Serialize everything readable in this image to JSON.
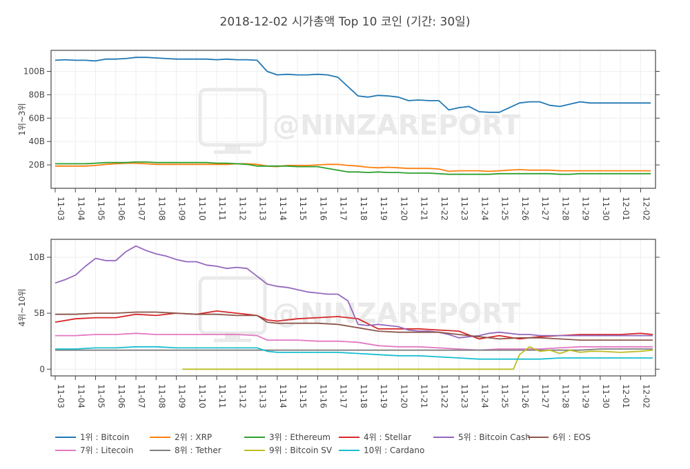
{
  "title": "2018-12-02 시가총액 Top 10 코인 (기간: 30일)",
  "watermark": "@NINZAREPORT",
  "chart_data": [
    {
      "type": "line",
      "panel": "top",
      "ylabel": "1위~3위",
      "ylim": [
        0,
        118
      ],
      "yticks": [
        20,
        40,
        60,
        80,
        100
      ],
      "ytick_labels": [
        "20B",
        "40B",
        "60B",
        "80B",
        "100B"
      ],
      "x_range": [
        0,
        29.6
      ],
      "series": [
        {
          "name": "1위 : Bitcoin",
          "color": "#1f77b4",
          "x": [
            0,
            0.5,
            1,
            1.5,
            2,
            2.5,
            3,
            3.5,
            4,
            4.5,
            5,
            5.5,
            6,
            6.5,
            7,
            7.5,
            8,
            8.5,
            9,
            9.5,
            10,
            10.5,
            11,
            11.5,
            12,
            12.5,
            13,
            13.5,
            14,
            14.5,
            15,
            15.5,
            16,
            16.5,
            17,
            17.5,
            18,
            18.5,
            19,
            19.5,
            20,
            20.5,
            21,
            21.5,
            22,
            22.5,
            23,
            23.5,
            24,
            24.5,
            25,
            25.5,
            26,
            26.5,
            27,
            27.5,
            28,
            28.5,
            29,
            29.5
          ],
          "y": [
            109.5,
            110,
            109.5,
            109.5,
            109,
            110.5,
            110.5,
            111,
            112,
            112,
            111.5,
            111,
            110.5,
            110.5,
            110.5,
            110.5,
            110,
            110.5,
            110,
            110,
            109.5,
            100,
            97,
            97.5,
            97,
            97,
            97.5,
            97,
            95,
            87,
            79,
            78,
            79.5,
            79,
            78,
            75,
            75.5,
            75,
            75,
            67,
            69,
            70,
            65.5,
            65,
            65,
            69,
            73,
            74,
            74,
            71,
            70,
            72,
            74,
            73,
            73,
            73,
            73,
            73,
            73,
            73
          ]
        },
        {
          "name": "2위 : XRP",
          "color": "#ff7f0e",
          "x": [
            0,
            0.5,
            1,
            1.5,
            2,
            2.5,
            3,
            3.5,
            4,
            4.5,
            5,
            5.5,
            6,
            6.5,
            7,
            7.5,
            8,
            8.5,
            9,
            9.5,
            10,
            10.5,
            11,
            11.5,
            12,
            12.5,
            13,
            13.5,
            14,
            14.5,
            15,
            15.5,
            16,
            16.5,
            17,
            17.5,
            18,
            18.5,
            19,
            19.5,
            20,
            20.5,
            21,
            21.5,
            22,
            22.5,
            23,
            23.5,
            24,
            24.5,
            25,
            25.5,
            26,
            26.5,
            27,
            27.5,
            28,
            28.5,
            29,
            29.5
          ],
          "y": [
            19,
            19,
            19,
            19,
            19.5,
            20.5,
            21,
            21.5,
            21.5,
            21,
            20.5,
            20.5,
            20.5,
            20.5,
            20.5,
            20.5,
            20.5,
            20.5,
            21,
            21,
            20.5,
            19,
            18.5,
            19.5,
            19.5,
            19.5,
            20,
            20.5,
            20.5,
            19.5,
            19,
            18,
            17.5,
            18,
            17.5,
            17,
            17,
            17,
            16.5,
            14.5,
            15,
            15,
            15,
            14.5,
            15,
            15.5,
            16,
            15.5,
            15.5,
            15.5,
            15,
            15,
            15,
            15,
            15,
            15,
            15,
            15,
            15,
            15
          ]
        },
        {
          "name": "3위 : Ethereum",
          "color": "#2ca02c",
          "x": [
            0,
            0.5,
            1,
            1.5,
            2,
            2.5,
            3,
            3.5,
            4,
            4.5,
            5,
            5.5,
            6,
            6.5,
            7,
            7.5,
            8,
            8.5,
            9,
            9.5,
            10,
            10.5,
            11,
            11.5,
            12,
            12.5,
            13,
            13.5,
            14,
            14.5,
            15,
            15.5,
            16,
            16.5,
            17,
            17.5,
            18,
            18.5,
            19,
            19.5,
            20,
            20.5,
            21,
            21.5,
            22,
            22.5,
            23,
            23.5,
            24,
            24.5,
            25,
            25.5,
            26,
            26.5,
            27,
            27.5,
            28,
            28.5,
            29,
            29.5
          ],
          "y": [
            21,
            21,
            21,
            21,
            21.5,
            22,
            22,
            22,
            22.5,
            22.5,
            22,
            22,
            22,
            22,
            22,
            22,
            21.5,
            21.5,
            21,
            20.5,
            19,
            19,
            19,
            19,
            18.5,
            18.5,
            18.5,
            17,
            15.5,
            14,
            14,
            13.5,
            14,
            13.5,
            13.5,
            13,
            13,
            13,
            12.5,
            12,
            12,
            12,
            12,
            12,
            12.5,
            12.5,
            12.5,
            12.5,
            12.5,
            12.5,
            12,
            12,
            12.5,
            12.5,
            12.5,
            12.5,
            12.5,
            12.5,
            12.5,
            12.5
          ]
        }
      ]
    },
    {
      "type": "line",
      "panel": "bottom",
      "ylabel": "4위~10위",
      "ylim": [
        -0.6,
        11.6
      ],
      "yticks": [
        0,
        5,
        10
      ],
      "ytick_labels": [
        "0",
        "5B",
        "10B"
      ],
      "x_range": [
        0,
        29.6
      ],
      "xtick_labels": [
        "11-03",
        "11-04",
        "11-05",
        "11-06",
        "11-07",
        "11-08",
        "11-09",
        "11-10",
        "11-11",
        "11-12",
        "11-13",
        "11-14",
        "11-15",
        "11-16",
        "11-17",
        "11-18",
        "11-19",
        "11-20",
        "11-21",
        "11-22",
        "11-23",
        "11-24",
        "11-25",
        "11-26",
        "11-27",
        "11-28",
        "11-29",
        "11-30",
        "12-01",
        "12-02"
      ],
      "series": [
        {
          "name": "4위 : Stellar",
          "color": "#d62728",
          "x": [
            0,
            1,
            2,
            3,
            4,
            5,
            6,
            7,
            8,
            9,
            10,
            10.5,
            11,
            12,
            13,
            14,
            15,
            16,
            17,
            18,
            19,
            20,
            21,
            22,
            23,
            24,
            25,
            26,
            27,
            28,
            29,
            29.6
          ],
          "y": [
            4.2,
            4.5,
            4.6,
            4.6,
            4.9,
            4.8,
            5,
            4.9,
            5.2,
            5,
            4.8,
            4.4,
            4.3,
            4.5,
            4.6,
            4.7,
            4.5,
            3.6,
            3.6,
            3.6,
            3.5,
            3.4,
            2.7,
            3,
            2.7,
            2.9,
            3,
            3.1,
            3.1,
            3.1,
            3.2,
            3.1
          ]
        },
        {
          "name": "5위 : Bitcoin Cash",
          "color": "#9467bd",
          "x": [
            0,
            0.5,
            1,
            1.5,
            2,
            2.5,
            3,
            3.5,
            4,
            4.5,
            5,
            5.5,
            6,
            6.5,
            7,
            7.5,
            8,
            8.5,
            9,
            9.5,
            10,
            10.5,
            11,
            11.5,
            12,
            12.5,
            13,
            13.5,
            14,
            14.5,
            15,
            15.5,
            16,
            16.5,
            17,
            17.5,
            18,
            18.5,
            19,
            19.5,
            20,
            20.5,
            21,
            21.5,
            22,
            22.5,
            23,
            23.5,
            24,
            24.5,
            25,
            25.5,
            26,
            26.5,
            27,
            27.5,
            28,
            28.5,
            29,
            29.6
          ],
          "y": [
            7.7,
            8,
            8.4,
            9.2,
            9.9,
            9.7,
            9.7,
            10.5,
            11,
            10.6,
            10.3,
            10.1,
            9.8,
            9.6,
            9.6,
            9.3,
            9.2,
            9,
            9.1,
            9,
            8.3,
            7.6,
            7.4,
            7.3,
            7.1,
            6.9,
            6.8,
            6.7,
            6.7,
            6.1,
            4,
            3.9,
            4,
            3.9,
            3.8,
            3.5,
            3.4,
            3.4,
            3.3,
            3.1,
            2.8,
            2.9,
            3,
            3.2,
            3.3,
            3.2,
            3.1,
            3.1,
            3,
            3,
            3,
            3,
            3,
            3,
            3,
            3,
            3,
            3,
            3,
            3
          ]
        },
        {
          "name": "6위 : EOS",
          "color": "#8c564b",
          "x": [
            0,
            1,
            2,
            3,
            4,
            5,
            6,
            7,
            8,
            9,
            10,
            10.5,
            11,
            12,
            13,
            14,
            15,
            16,
            17,
            18,
            19,
            20,
            21,
            22,
            23,
            24,
            25,
            26,
            27,
            28,
            29,
            29.6
          ],
          "y": [
            4.9,
            4.9,
            5,
            5,
            5.1,
            5.1,
            5,
            4.9,
            4.9,
            4.8,
            4.8,
            4.2,
            4.1,
            4.1,
            4.1,
            4,
            3.7,
            3.4,
            3.3,
            3.3,
            3.3,
            3.1,
            2.9,
            2.7,
            2.8,
            2.8,
            2.7,
            2.6,
            2.6,
            2.6,
            2.6,
            2.6
          ]
        },
        {
          "name": "7위 : Litecoin",
          "color": "#e377c2",
          "x": [
            0,
            1,
            2,
            3,
            4,
            5,
            6,
            7,
            8,
            9,
            10,
            10.5,
            11,
            12,
            13,
            14,
            15,
            16,
            17,
            18,
            19,
            20,
            21,
            22,
            23,
            24,
            25,
            26,
            27,
            28,
            29,
            29.6
          ],
          "y": [
            3,
            3,
            3.1,
            3.1,
            3.2,
            3.1,
            3.1,
            3.1,
            3.1,
            3.1,
            3,
            2.6,
            2.6,
            2.6,
            2.5,
            2.5,
            2.4,
            2.1,
            2,
            2,
            1.9,
            1.8,
            1.7,
            1.8,
            1.8,
            1.8,
            1.9,
            2,
            2,
            2,
            2,
            2
          ]
        },
        {
          "name": "8위 : Tether",
          "color": "#7f7f7f",
          "x": [
            0,
            1,
            2,
            3,
            4,
            5,
            6,
            7,
            8,
            9,
            10,
            10.5,
            11,
            12,
            13,
            14,
            15,
            16,
            17,
            18,
            19,
            20,
            21,
            22,
            23,
            24,
            25,
            26,
            27,
            28,
            29,
            29.6
          ],
          "y": [
            1.7,
            1.7,
            1.7,
            1.7,
            1.7,
            1.7,
            1.7,
            1.7,
            1.7,
            1.7,
            1.7,
            1.7,
            1.7,
            1.7,
            1.7,
            1.7,
            1.7,
            1.7,
            1.7,
            1.7,
            1.7,
            1.7,
            1.7,
            1.7,
            1.7,
            1.7,
            1.7,
            1.7,
            1.8,
            1.8,
            1.8,
            1.8
          ]
        },
        {
          "name": "9위 : Bitcoin SV",
          "color": "#bcbd22",
          "x": [
            6.3,
            7,
            8,
            9,
            10,
            11,
            12,
            13,
            14,
            15,
            16,
            17,
            18,
            19,
            20,
            21,
            22,
            22.7,
            23,
            23.5,
            24,
            24.5,
            25,
            25.5,
            26,
            26.5,
            27,
            28,
            29,
            29.6
          ],
          "y": [
            0,
            0,
            0,
            0,
            0,
            0,
            0,
            0,
            0,
            0,
            0,
            0,
            0,
            0,
            0,
            0,
            0,
            0,
            1.3,
            2,
            1.6,
            1.7,
            1.4,
            1.7,
            1.5,
            1.6,
            1.6,
            1.5,
            1.6,
            1.7
          ]
        },
        {
          "name": "10위 : Cardano",
          "color": "#17becf",
          "x": [
            0,
            1,
            2,
            3,
            4,
            5,
            6,
            7,
            8,
            9,
            10,
            10.5,
            11,
            12,
            13,
            14,
            15,
            16,
            17,
            18,
            19,
            20,
            21,
            22,
            23,
            24,
            25,
            26,
            27,
            28,
            29,
            29.6
          ],
          "y": [
            1.8,
            1.8,
            1.9,
            1.9,
            2,
            2,
            1.9,
            1.9,
            1.9,
            1.9,
            1.9,
            1.6,
            1.5,
            1.5,
            1.5,
            1.5,
            1.4,
            1.3,
            1.2,
            1.2,
            1.1,
            1,
            0.9,
            0.9,
            0.9,
            0.9,
            1,
            1,
            1,
            1,
            1,
            1
          ]
        }
      ]
    }
  ]
}
